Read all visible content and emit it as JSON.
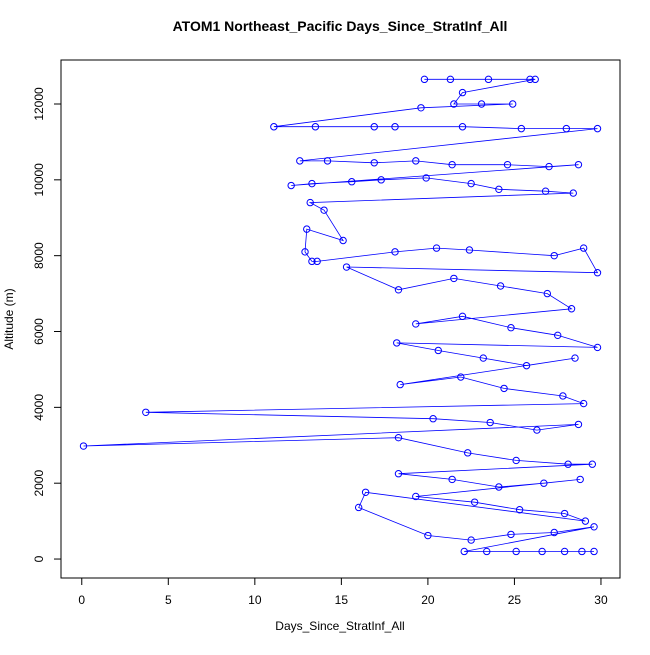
{
  "chart_data": {
    "type": "line",
    "markers": true,
    "color": "#0000ff",
    "title": "ATOM1 Northeast_Pacific Days_Since_StratInf_All",
    "x_label": "Days_Since_StratInf_All",
    "y_label": "Altitude (m)",
    "xlim": [
      -1.2,
      31.1
    ],
    "ylim": [
      -500,
      13160
    ],
    "xticks": [
      0,
      5,
      10,
      15,
      20,
      25,
      30
    ],
    "yticks": [
      0,
      2000,
      4000,
      6000,
      8000,
      10000,
      12000
    ],
    "x": [
      19.8,
      21.3,
      23.5,
      25.9,
      26.2,
      22.0,
      21.5,
      23.1,
      24.9,
      19.6,
      11.1,
      13.5,
      16.9,
      18.1,
      22.0,
      25.4,
      28.0,
      29.8,
      12.6,
      14.2,
      16.9,
      19.3,
      21.4,
      24.6,
      27.0,
      28.7,
      12.1,
      13.3,
      15.6,
      17.3,
      19.9,
      22.5,
      24.1,
      26.8,
      28.4,
      13.2,
      14.0,
      15.1,
      13.0,
      12.9,
      13.3,
      13.6,
      18.1,
      20.5,
      22.4,
      27.3,
      29.0,
      29.8,
      15.3,
      18.3,
      21.5,
      24.2,
      26.9,
      28.3,
      19.3,
      22.0,
      24.8,
      27.5,
      29.8,
      18.2,
      20.6,
      23.2,
      25.7,
      28.5,
      18.4,
      21.9,
      24.4,
      27.8,
      29.0,
      3.7,
      20.3,
      23.6,
      26.3,
      28.7,
      0.1,
      18.3,
      22.3,
      25.1,
      28.1,
      29.5,
      18.3,
      21.4,
      24.1,
      26.7,
      28.8,
      19.3,
      22.7,
      25.3,
      27.9,
      29.1,
      16.4,
      16.0,
      20.0,
      22.5,
      24.8,
      27.3,
      29.6,
      22.1,
      23.4,
      25.1,
      26.6,
      27.9,
      28.9,
      29.6
    ],
    "values": [
      12650,
      12650,
      12650,
      12650,
      12650,
      12300,
      12000,
      12000,
      12000,
      11900,
      11400,
      11400,
      11400,
      11400,
      11400,
      11350,
      11350,
      11350,
      10500,
      10500,
      10450,
      10500,
      10400,
      10400,
      10350,
      10400,
      9850,
      9900,
      9950,
      10000,
      10050,
      9900,
      9750,
      9700,
      9650,
      9400,
      9200,
      8400,
      8700,
      8100,
      7850,
      7850,
      8100,
      8200,
      8150,
      8000,
      8200,
      7550,
      7700,
      7100,
      7400,
      7200,
      7000,
      6600,
      6200,
      6400,
      6100,
      5900,
      5580,
      5700,
      5500,
      5300,
      5100,
      5300,
      4600,
      4800,
      4500,
      4300,
      4100,
      3870,
      3700,
      3600,
      3400,
      3550,
      2980,
      3200,
      2800,
      2600,
      2500,
      2500,
      2250,
      2100,
      1900,
      2000,
      2100,
      1650,
      1500,
      1300,
      1200,
      1000,
      1760,
      1360,
      620,
      500,
      650,
      700,
      850,
      200,
      200,
      200,
      200,
      200,
      200,
      200
    ]
  }
}
